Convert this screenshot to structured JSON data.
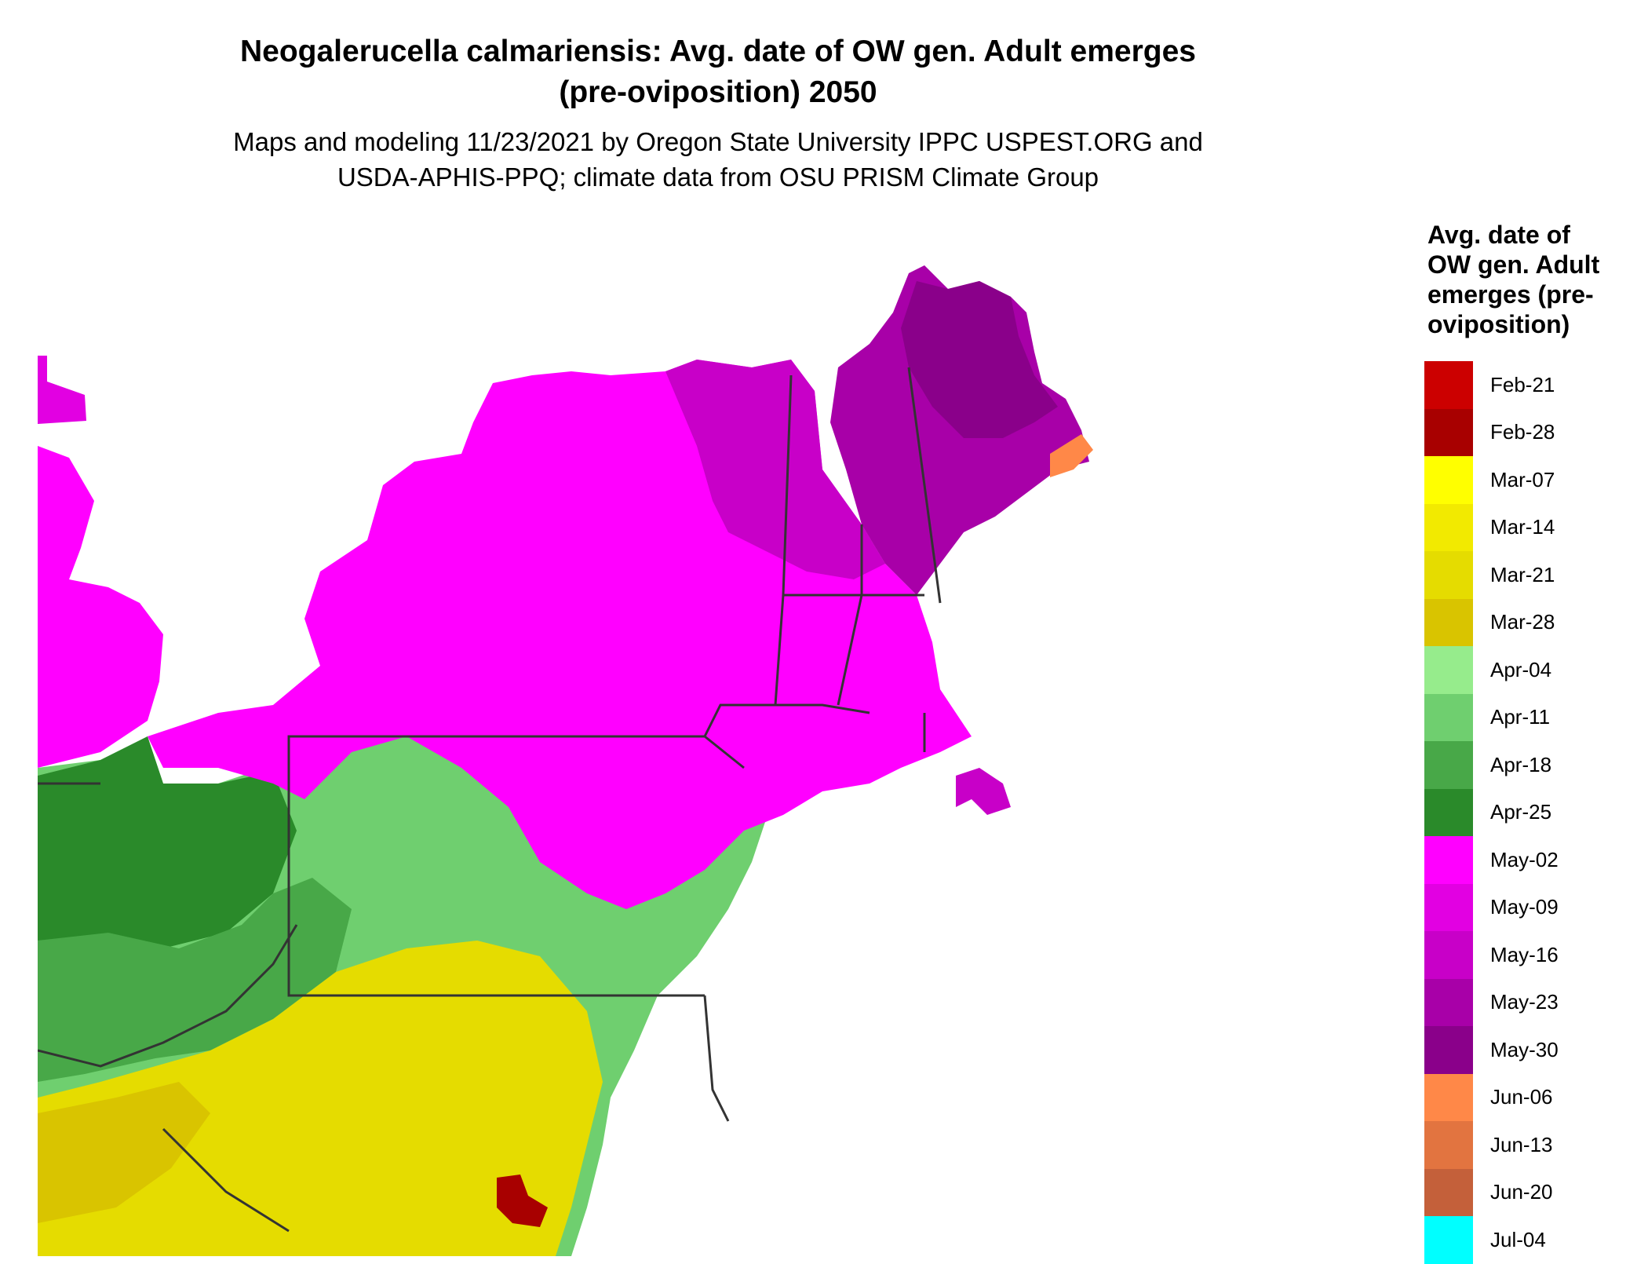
{
  "title": {
    "line1": "Neogalerucella calmariensis: Avg. date of OW gen. Adult emerges",
    "line2": "(pre-oviposition) 2050"
  },
  "subtitle": {
    "line1": "Maps and modeling 11/23/2021 by Oregon State University IPPC USPEST.ORG and",
    "line2": "USDA-APHIS-PPQ; climate data from OSU PRISM Climate Group"
  },
  "legend": {
    "title_lines": [
      "Avg. date of",
      "OW gen. Adult",
      "emerges (pre-",
      "oviposition)"
    ],
    "items": [
      {
        "label": "Feb-21",
        "color": "#cc0000"
      },
      {
        "label": "Feb-28",
        "color": "#a80000"
      },
      {
        "label": "Mar-07",
        "color": "#ffff00"
      },
      {
        "label": "Mar-14",
        "color": "#f2ea00"
      },
      {
        "label": "Mar-21",
        "color": "#e5dc00"
      },
      {
        "label": "Mar-28",
        "color": "#d9c400"
      },
      {
        "label": "Apr-04",
        "color": "#96ec8c"
      },
      {
        "label": "Apr-11",
        "color": "#6fcf6f"
      },
      {
        "label": "Apr-18",
        "color": "#48a848"
      },
      {
        "label": "Apr-25",
        "color": "#2a8a2a"
      },
      {
        "label": "May-02",
        "color": "#ff00ff"
      },
      {
        "label": "May-09",
        "color": "#e200e2"
      },
      {
        "label": "May-16",
        "color": "#c800c8"
      },
      {
        "label": "May-23",
        "color": "#a800a8"
      },
      {
        "label": "May-30",
        "color": "#8a008a"
      },
      {
        "label": "Jun-06",
        "color": "#ff8848"
      },
      {
        "label": "Jun-13",
        "color": "#e27440"
      },
      {
        "label": "Jun-20",
        "color": "#c4603a"
      },
      {
        "label": "Jul-04",
        "color": "#00ffff"
      }
    ]
  }
}
